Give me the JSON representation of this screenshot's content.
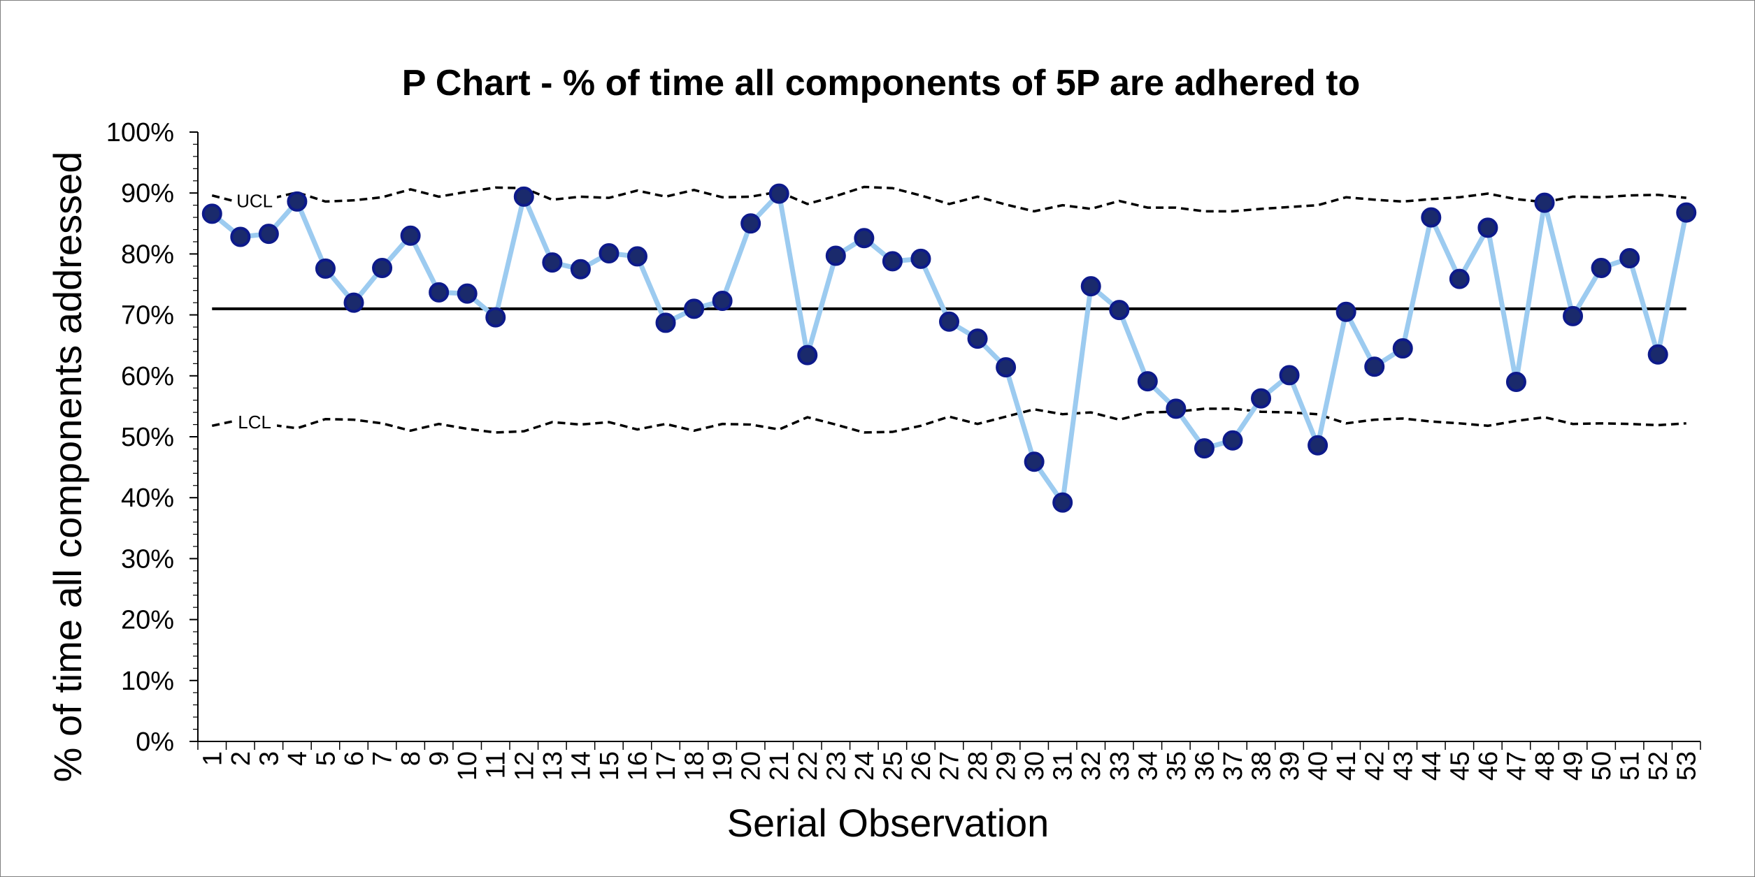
{
  "chart_data": {
    "type": "line",
    "title": "P Chart - % of time all components of 5P are adhered to",
    "xlabel": "Serial Observation",
    "ylabel": "% of time all components addressed",
    "ylim": [
      0,
      1
    ],
    "y_ticks": [
      0,
      0.1,
      0.2,
      0.3,
      0.4,
      0.5,
      0.6,
      0.7,
      0.8,
      0.9,
      1.0
    ],
    "y_tick_labels": [
      "0%",
      "10%",
      "20%",
      "30%",
      "40%",
      "50%",
      "60%",
      "70%",
      "80%",
      "90%",
      "100%"
    ],
    "x": [
      1,
      2,
      3,
      4,
      5,
      6,
      7,
      8,
      9,
      10,
      11,
      12,
      13,
      14,
      15,
      16,
      17,
      18,
      19,
      20,
      21,
      22,
      23,
      24,
      25,
      26,
      27,
      28,
      29,
      30,
      31,
      32,
      33,
      34,
      35,
      36,
      37,
      38,
      39,
      40,
      41,
      42,
      43,
      44,
      45,
      46,
      47,
      48,
      49,
      50,
      51,
      52,
      53
    ],
    "x_tick_labels": [
      "1",
      "2",
      "3",
      "4",
      "5",
      "6",
      "7",
      "8",
      "9",
      "10",
      "11",
      "12",
      "13",
      "14",
      "15",
      "16",
      "17",
      "18",
      "19",
      "20",
      "21",
      "22",
      "23",
      "24",
      "25",
      "26",
      "27",
      "28",
      "29",
      "30",
      "31",
      "32",
      "33",
      "34",
      "35",
      "36",
      "37",
      "38",
      "39",
      "40",
      "41",
      "42",
      "43",
      "44",
      "45",
      "46",
      "47",
      "48",
      "49",
      "50",
      "51",
      "52",
      "53"
    ],
    "grid": false,
    "legend": "none",
    "series": [
      {
        "role": "proportion",
        "values": [
          0.866,
          0.828,
          0.833,
          0.886,
          0.776,
          0.72,
          0.777,
          0.83,
          0.737,
          0.735,
          0.696,
          0.894,
          0.786,
          0.775,
          0.801,
          0.796,
          0.687,
          0.71,
          0.723,
          0.85,
          0.899,
          0.634,
          0.797,
          0.826,
          0.788,
          0.792,
          0.689,
          0.661,
          0.614,
          0.459,
          0.392,
          0.747,
          0.708,
          0.591,
          0.546,
          0.481,
          0.494,
          0.563,
          0.601,
          0.486,
          0.705,
          0.615,
          0.645,
          0.86,
          0.759,
          0.843,
          0.59,
          0.884,
          0.698,
          0.777,
          0.793,
          0.635,
          0.868
        ],
        "line_color": "#9ccbf0",
        "marker_fill": "#1a2a6c",
        "marker_edge": "#0d1a8a"
      },
      {
        "role": "center-line",
        "value": 0.71,
        "color": "#000000"
      },
      {
        "name": "UCL",
        "style": "dashed",
        "color": "#000000",
        "values": [
          0.896,
          0.884,
          0.89,
          0.901,
          0.886,
          0.888,
          0.893,
          0.906,
          0.894,
          0.902,
          0.909,
          0.908,
          0.889,
          0.894,
          0.892,
          0.904,
          0.894,
          0.905,
          0.893,
          0.894,
          0.902,
          0.882,
          0.895,
          0.91,
          0.908,
          0.896,
          0.882,
          0.894,
          0.881,
          0.87,
          0.88,
          0.874,
          0.887,
          0.876,
          0.876,
          0.87,
          0.87,
          0.874,
          0.877,
          0.88,
          0.893,
          0.889,
          0.886,
          0.89,
          0.893,
          0.899,
          0.89,
          0.885,
          0.894,
          0.893,
          0.896,
          0.897,
          0.892
        ]
      },
      {
        "name": "LCL",
        "style": "dashed",
        "color": "#000000",
        "values": [
          0.518,
          0.528,
          0.52,
          0.514,
          0.529,
          0.528,
          0.522,
          0.51,
          0.521,
          0.513,
          0.507,
          0.509,
          0.524,
          0.52,
          0.524,
          0.512,
          0.521,
          0.51,
          0.521,
          0.52,
          0.512,
          0.532,
          0.52,
          0.507,
          0.508,
          0.518,
          0.533,
          0.521,
          0.533,
          0.545,
          0.537,
          0.54,
          0.528,
          0.54,
          0.541,
          0.546,
          0.546,
          0.541,
          0.54,
          0.537,
          0.522,
          0.528,
          0.53,
          0.525,
          0.522,
          0.518,
          0.526,
          0.532,
          0.521,
          0.522,
          0.521,
          0.519,
          0.522
        ]
      }
    ]
  }
}
